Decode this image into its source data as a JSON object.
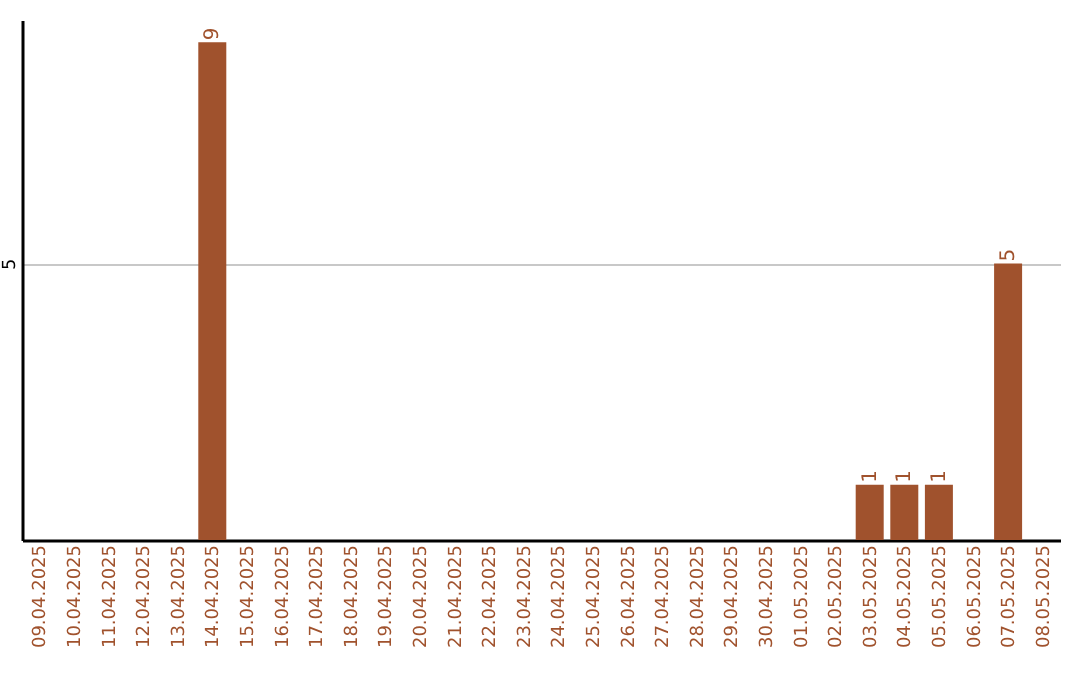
{
  "chart_data": {
    "type": "bar",
    "categories": [
      "09.04.2025",
      "10.04.2025",
      "11.04.2025",
      "12.04.2025",
      "13.04.2025",
      "14.04.2025",
      "15.04.2025",
      "16.04.2025",
      "17.04.2025",
      "18.04.2025",
      "19.04.2025",
      "20.04.2025",
      "21.04.2025",
      "22.04.2025",
      "23.04.2025",
      "24.04.2025",
      "25.04.2025",
      "26.04.2025",
      "27.04.2025",
      "28.04.2025",
      "29.04.2025",
      "30.04.2025",
      "01.05.2025",
      "02.05.2025",
      "03.05.2025",
      "04.05.2025",
      "05.05.2025",
      "06.05.2025",
      "07.05.2025",
      "08.05.2025"
    ],
    "values": [
      0,
      0,
      0,
      0,
      0,
      9,
      0,
      0,
      0,
      0,
      0,
      0,
      0,
      0,
      0,
      0,
      0,
      0,
      0,
      0,
      0,
      0,
      0,
      0,
      1,
      1,
      1,
      0,
      5,
      0
    ],
    "value_labels": [
      null,
      null,
      null,
      null,
      null,
      "9",
      null,
      null,
      null,
      null,
      null,
      null,
      null,
      null,
      null,
      null,
      null,
      null,
      null,
      null,
      null,
      null,
      null,
      null,
      "1",
      "1",
      "1",
      null,
      "5",
      null
    ],
    "color": "#a0522d",
    "ylim": [
      0,
      9.4
    ],
    "yticks": [
      5
    ],
    "grid": "y"
  }
}
